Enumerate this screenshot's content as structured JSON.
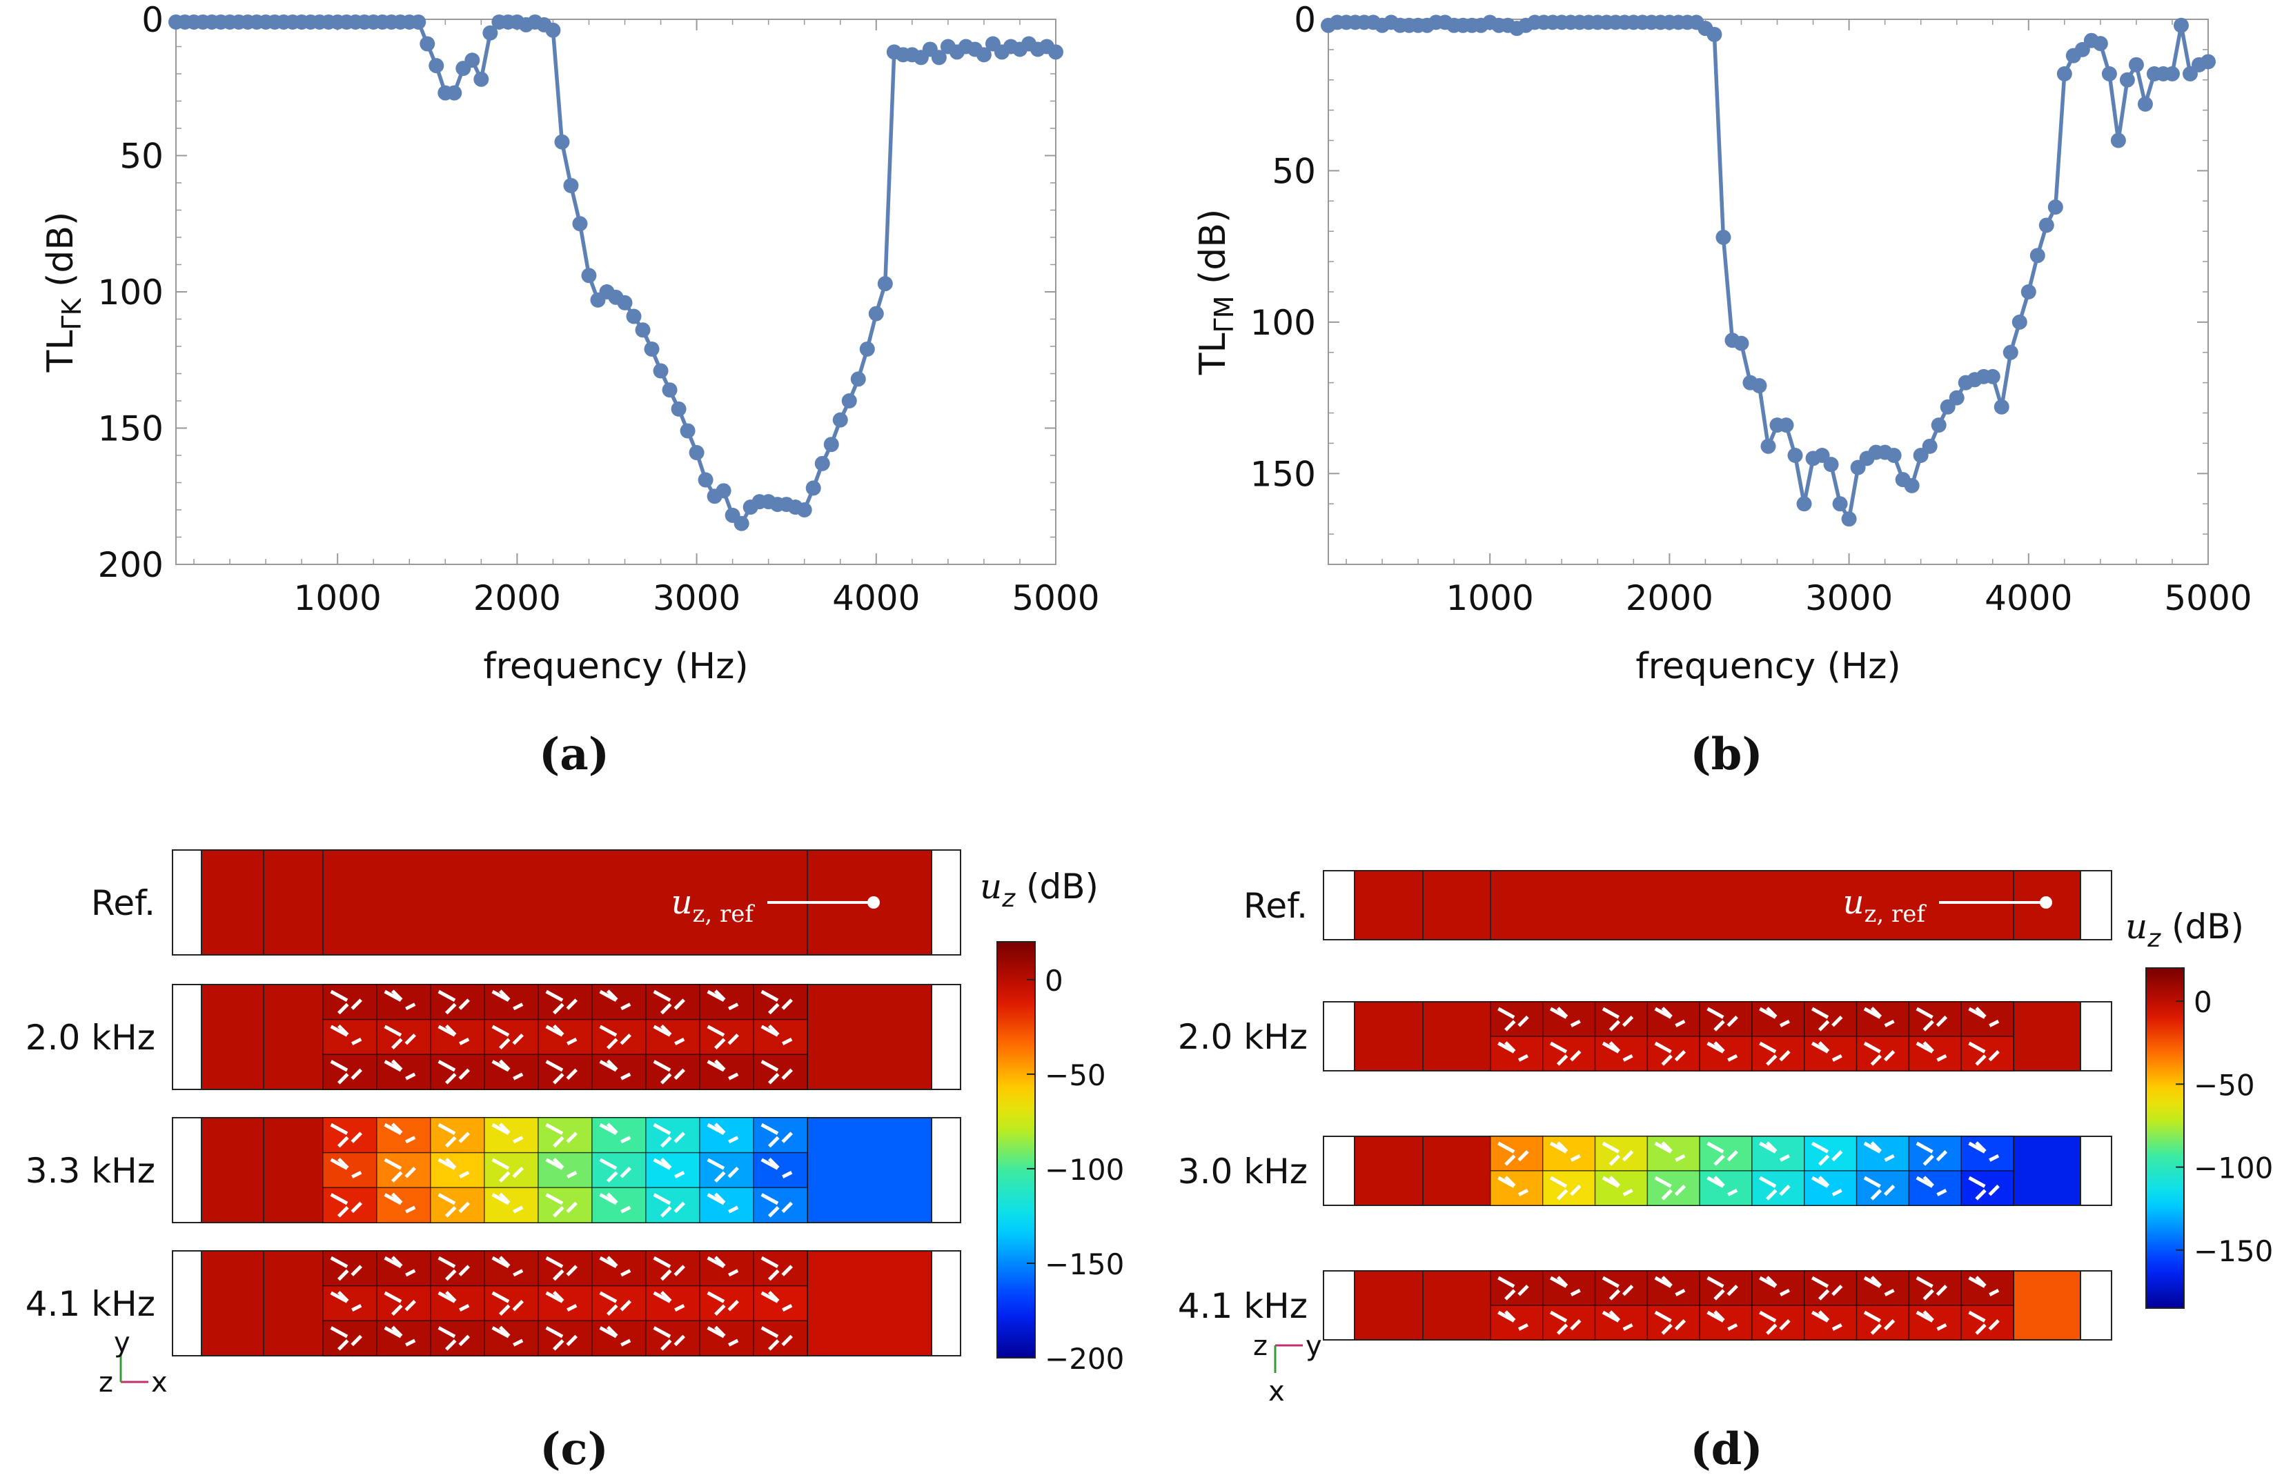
{
  "chart_data": [
    {
      "panel": "a",
      "type": "line",
      "caption": "(a)",
      "title": "",
      "xlabel": "frequency (Hz)",
      "ylabel_main": "TL",
      "ylabel_sub": "ΓK",
      "ylabel_unit": " (dB)",
      "xlim": [
        100,
        5000
      ],
      "ylim": [
        0,
        200
      ],
      "y_reversed": true,
      "xticks": [
        "1000",
        "2000",
        "3000",
        "4000",
        "5000"
      ],
      "yticks": [
        "0",
        "50",
        "100",
        "150",
        "200"
      ],
      "color": "#5E81B5",
      "x": [
        100,
        150,
        200,
        250,
        300,
        350,
        400,
        450,
        500,
        550,
        600,
        650,
        700,
        750,
        800,
        850,
        900,
        950,
        1000,
        1050,
        1100,
        1150,
        1200,
        1250,
        1300,
        1350,
        1400,
        1450,
        1500,
        1550,
        1600,
        1650,
        1700,
        1750,
        1800,
        1850,
        1900,
        1950,
        2000,
        2050,
        2100,
        2150,
        2200,
        2250,
        2300,
        2350,
        2400,
        2450,
        2500,
        2550,
        2600,
        2650,
        2700,
        2750,
        2800,
        2850,
        2900,
        2950,
        3000,
        3050,
        3100,
        3150,
        3200,
        3250,
        3300,
        3350,
        3400,
        3450,
        3500,
        3550,
        3600,
        3650,
        3700,
        3750,
        3800,
        3850,
        3900,
        3950,
        4000,
        4050,
        4100,
        4150,
        4200,
        4250,
        4300,
        4350,
        4400,
        4450,
        4500,
        4550,
        4600,
        4650,
        4700,
        4750,
        4800,
        4850,
        4900,
        4950,
        5000
      ],
      "y": [
        1,
        1,
        1,
        1,
        1,
        1,
        1,
        1,
        1,
        1,
        1,
        1,
        1,
        1,
        1,
        1,
        1,
        1,
        1,
        1,
        1,
        1,
        1,
        1,
        1,
        1,
        1,
        1,
        9,
        17,
        27,
        27,
        18,
        15,
        22,
        5,
        1,
        1,
        1,
        2,
        1,
        2,
        4,
        45,
        61,
        75,
        94,
        103,
        100,
        102,
        104,
        109,
        114,
        121,
        129,
        136,
        143,
        151,
        159,
        169,
        175,
        173,
        182,
        185,
        179,
        177,
        177,
        178,
        178,
        179,
        180,
        172,
        163,
        156,
        147,
        140,
        132,
        121,
        108,
        97,
        12,
        13,
        13,
        14,
        11,
        14,
        10,
        12,
        10,
        11,
        13,
        9,
        12,
        10,
        11,
        9,
        11,
        10,
        12
      ]
    },
    {
      "panel": "b",
      "type": "line",
      "caption": "(b)",
      "title": "",
      "xlabel": "frequency (Hz)",
      "ylabel_main": "TL",
      "ylabel_sub": "ΓM",
      "ylabel_unit": " (dB)",
      "xlim": [
        100,
        5000
      ],
      "ylim": [
        0,
        180
      ],
      "y_reversed": true,
      "xticks": [
        "1000",
        "2000",
        "3000",
        "4000",
        "5000"
      ],
      "yticks": [
        "0",
        "50",
        "100",
        "150"
      ],
      "color": "#5E81B5",
      "x": [
        100,
        150,
        200,
        250,
        300,
        350,
        400,
        450,
        500,
        550,
        600,
        650,
        700,
        750,
        800,
        850,
        900,
        950,
        1000,
        1050,
        1100,
        1150,
        1200,
        1250,
        1300,
        1350,
        1400,
        1450,
        1500,
        1550,
        1600,
        1650,
        1700,
        1750,
        1800,
        1850,
        1900,
        1950,
        2000,
        2050,
        2100,
        2150,
        2200,
        2250,
        2300,
        2350,
        2400,
        2450,
        2500,
        2550,
        2600,
        2650,
        2700,
        2750,
        2800,
        2850,
        2900,
        2950,
        3000,
        3050,
        3100,
        3150,
        3200,
        3250,
        3300,
        3350,
        3400,
        3450,
        3500,
        3550,
        3600,
        3650,
        3700,
        3750,
        3800,
        3850,
        3900,
        3950,
        4000,
        4050,
        4100,
        4150,
        4200,
        4250,
        4300,
        4350,
        4400,
        4450,
        4500,
        4550,
        4600,
        4650,
        4700,
        4750,
        4800,
        4850,
        4900,
        4950,
        5000
      ],
      "y": [
        2,
        1,
        1,
        1,
        1,
        1,
        2,
        1,
        2,
        2,
        2,
        2,
        1,
        1,
        2,
        2,
        2,
        2,
        1,
        2,
        2,
        3,
        2,
        1,
        1,
        1,
        1,
        1,
        1,
        1,
        1,
        1,
        1,
        1,
        1,
        1,
        1,
        1,
        1,
        1,
        1,
        1,
        3,
        5,
        72,
        106,
        107,
        120,
        121,
        141,
        134,
        134,
        144,
        160,
        145,
        144,
        147,
        160,
        165,
        148,
        145,
        143,
        143,
        144,
        152,
        154,
        144,
        141,
        134,
        128,
        125,
        120,
        119,
        118,
        118,
        128,
        110,
        100,
        90,
        78,
        68,
        62,
        18,
        12,
        10,
        7,
        8,
        18,
        40,
        20,
        15,
        28,
        18,
        18,
        18,
        2,
        18,
        15,
        14
      ]
    },
    {
      "panel": "c",
      "type": "heatmap",
      "caption": "(c)",
      "colorbar_title_var": "u",
      "colorbar_title_sub": "z",
      "colorbar_title_unit": " (dB)",
      "colorbar_ticks": [
        "0",
        "−50",
        "−100",
        "−150",
        "−200"
      ],
      "colorbar_range": [
        -200,
        20
      ],
      "probe_label_var": "u",
      "probe_label_sub": "z, ref",
      "rows": [
        {
          "label": "Ref.",
          "value_left": 0,
          "value_right": 0,
          "cell_start": 0,
          "cell_end": 0,
          "has_cells": false
        },
        {
          "label": "2.0 kHz",
          "value_left": 0,
          "value_right": 0,
          "cell_start": 0,
          "cell_end": 0,
          "has_cells": true
        },
        {
          "label": "3.3 kHz",
          "value_left": 0,
          "value_right": -160,
          "cell_start": -10,
          "cell_end": -165,
          "has_cells": true
        },
        {
          "label": "4.1 kHz",
          "value_left": 0,
          "value_right": -5,
          "cell_start": 0,
          "cell_end": -5,
          "has_cells": true
        }
      ],
      "axes": {
        "vertical": "y",
        "out_of_plane": "z",
        "horizontal": "x"
      }
    },
    {
      "panel": "d",
      "type": "heatmap",
      "caption": "(d)",
      "colorbar_title_var": "u",
      "colorbar_title_sub": "z",
      "colorbar_title_unit": " (dB)",
      "colorbar_ticks": [
        "0",
        "−50",
        "−100",
        "−150"
      ],
      "colorbar_range": [
        -185,
        20
      ],
      "probe_label_var": "u",
      "probe_label_sub": "z, ref",
      "rows": [
        {
          "label": "Ref.",
          "value_left": 0,
          "value_right": 0,
          "cell_start": 0,
          "cell_end": 0,
          "has_cells": false
        },
        {
          "label": "2.0 kHz",
          "value_left": 0,
          "value_right": 0,
          "cell_start": 0,
          "cell_end": 0,
          "has_cells": true
        },
        {
          "label": "3.0 kHz",
          "value_left": 0,
          "value_right": -165,
          "cell_start": -35,
          "cell_end": -165,
          "has_cells": true
        },
        {
          "label": "4.1 kHz",
          "value_left": 0,
          "value_right": -25,
          "cell_start": 0,
          "cell_end": 0,
          "has_cells": true
        }
      ],
      "axes": {
        "vertical": "x",
        "out_of_plane": "z",
        "horizontal": "y"
      }
    }
  ]
}
